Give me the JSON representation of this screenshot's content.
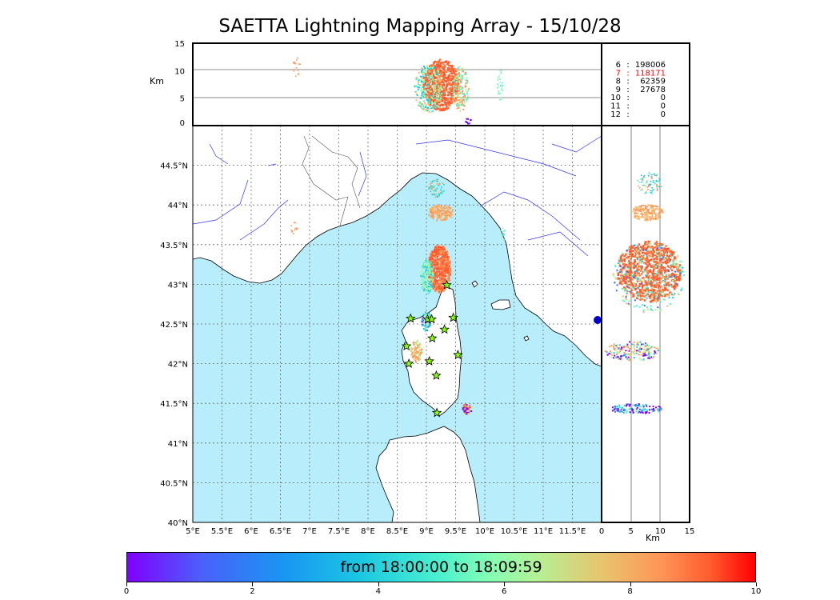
{
  "title": "SAETTA Lightning Mapping Array - 15/10/28",
  "alt_axis": {
    "unit": "Km",
    "ticks": [
      "0",
      "5",
      "10",
      "15"
    ],
    "values": [
      0,
      5,
      10,
      15
    ]
  },
  "lon_ticks": [
    "5°E",
    "5.5°E",
    "6°E",
    "6.5°E",
    "7°E",
    "7.5°E",
    "8°E",
    "8.5°E",
    "9°E",
    "9.5°E",
    "10°E",
    "10.5°E",
    "11°E",
    "11.5°E"
  ],
  "lat_ticks": [
    "40°N",
    "40.5°N",
    "41°N",
    "41.5°N",
    "42°N",
    "42.5°N",
    "43°N",
    "43.5°N",
    "44°N",
    "44.5°N"
  ],
  "map_extent": {
    "lon": [
      5,
      12
    ],
    "lat": [
      40,
      45
    ]
  },
  "counts": [
    {
      "label": "6",
      "value": "198006",
      "color": "#000000"
    },
    {
      "label": "7",
      "value": "118171",
      "color": "#ff0000"
    },
    {
      "label": "8",
      "value": "62359",
      "color": "#000000"
    },
    {
      "label": "9",
      "value": "27678",
      "color": "#000000"
    },
    {
      "label": "10",
      "value": "0",
      "color": "#000000"
    },
    {
      "label": "11",
      "value": "0",
      "color": "#000000"
    },
    {
      "label": "12",
      "value": "0",
      "color": "#000000"
    }
  ],
  "colorbar": {
    "label": "from 18:00:00 to 18:09:59",
    "ticks": [
      "0",
      "2",
      "4",
      "6",
      "8",
      "10"
    ],
    "values": [
      0,
      2,
      4,
      6,
      8,
      10
    ]
  },
  "stations": [
    {
      "lon": 9.35,
      "lat": 42.99
    },
    {
      "lon": 8.73,
      "lat": 42.57
    },
    {
      "lon": 9.02,
      "lat": 42.56
    },
    {
      "lon": 9.09,
      "lat": 42.56
    },
    {
      "lon": 9.46,
      "lat": 42.58
    },
    {
      "lon": 9.31,
      "lat": 42.43
    },
    {
      "lon": 9.1,
      "lat": 42.32
    },
    {
      "lon": 8.66,
      "lat": 42.22
    },
    {
      "lon": 9.54,
      "lat": 42.11
    },
    {
      "lon": 8.7,
      "lat": 42.0
    },
    {
      "lon": 9.05,
      "lat": 42.03
    },
    {
      "lon": 9.17,
      "lat": 41.85
    },
    {
      "lon": 9.18,
      "lat": 41.38
    }
  ],
  "colors": {
    "sea": "#b8eefc",
    "land": "#ffffff",
    "rivers": "#3333ff",
    "stations": "#88ff00"
  }
}
